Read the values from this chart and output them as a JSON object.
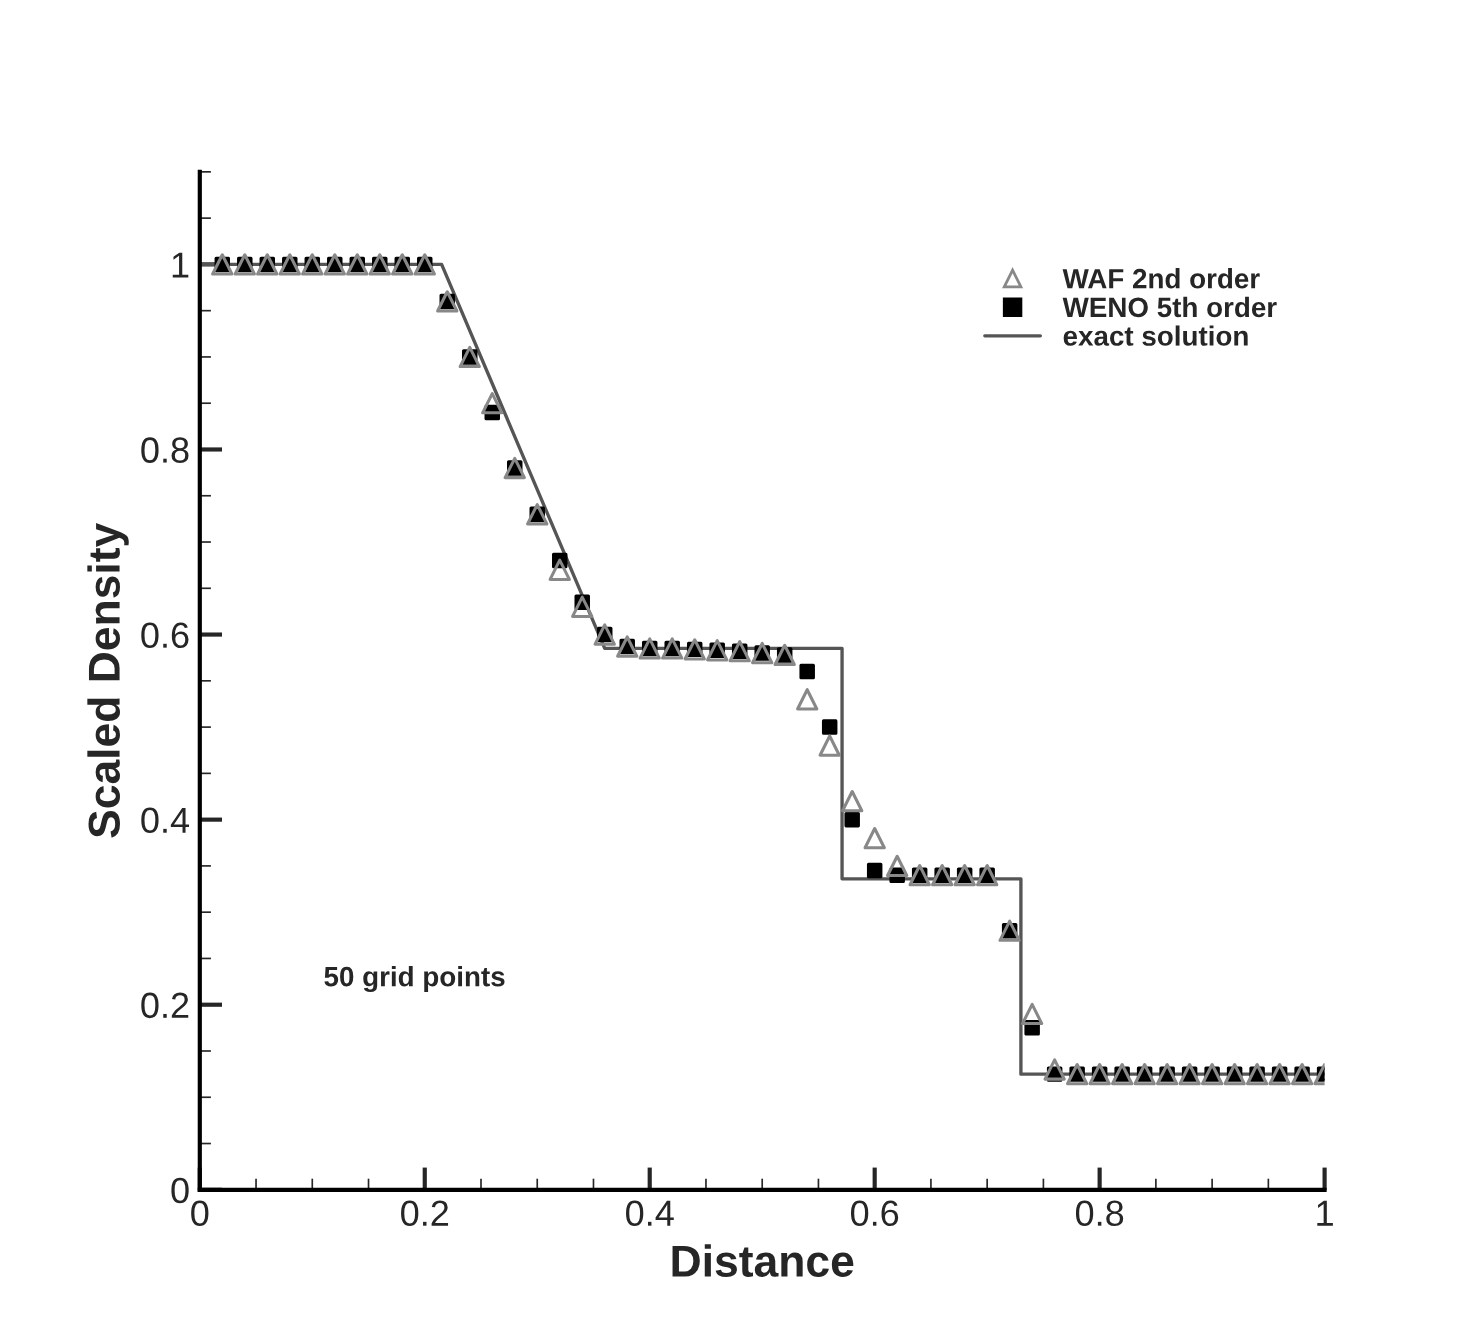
{
  "chart_data": {
    "type": "scatter",
    "xlabel": "Distance",
    "ylabel": "Scaled Density",
    "x": [
      0.02,
      0.04,
      0.06,
      0.08,
      0.1,
      0.12,
      0.14,
      0.16,
      0.18,
      0.2,
      0.22,
      0.24,
      0.26,
      0.28,
      0.3,
      0.32,
      0.34,
      0.36,
      0.38,
      0.4,
      0.42,
      0.44,
      0.46,
      0.48,
      0.5,
      0.52,
      0.54,
      0.56,
      0.58,
      0.6,
      0.62,
      0.64,
      0.66,
      0.68,
      0.7,
      0.72,
      0.74,
      0.76,
      0.78,
      0.8,
      0.82,
      0.84,
      0.86,
      0.88,
      0.9,
      0.92,
      0.94,
      0.96,
      0.98,
      1.0
    ],
    "series": [
      {
        "name": "WAF 2nd order",
        "marker": "triangle",
        "color": "#888888",
        "values": [
          1,
          1,
          1,
          1,
          1,
          1,
          1,
          1,
          1,
          1,
          0.96,
          0.9,
          0.85,
          0.78,
          0.73,
          0.67,
          0.63,
          0.6,
          0.587,
          0.585,
          0.585,
          0.584,
          0.583,
          0.582,
          0.58,
          0.578,
          0.53,
          0.48,
          0.42,
          0.38,
          0.35,
          0.34,
          0.34,
          0.34,
          0.34,
          0.28,
          0.19,
          0.13,
          0.125,
          0.125,
          0.125,
          0.125,
          0.125,
          0.125,
          0.125,
          0.125,
          0.125,
          0.125,
          0.125,
          0.125
        ]
      },
      {
        "name": "WENO 5th order",
        "marker": "square",
        "color": "#000000",
        "values": [
          1,
          1,
          1,
          1,
          1,
          1,
          1,
          1,
          1,
          1,
          0.96,
          0.9,
          0.84,
          0.78,
          0.73,
          0.68,
          0.635,
          0.6,
          0.587,
          0.585,
          0.585,
          0.584,
          0.583,
          0.582,
          0.58,
          0.578,
          0.56,
          0.5,
          0.4,
          0.345,
          0.34,
          0.34,
          0.34,
          0.34,
          0.34,
          0.28,
          0.175,
          0.125,
          0.125,
          0.125,
          0.125,
          0.125,
          0.125,
          0.125,
          0.125,
          0.125,
          0.125,
          0.125,
          0.125,
          0.125
        ]
      },
      {
        "name": "exact solution",
        "type": "line",
        "marker": "none",
        "color": "#555555",
        "x": [
          0,
          0.215,
          0.36,
          0.571,
          0.571,
          0.73,
          0.73,
          1.0
        ],
        "values": [
          1,
          1,
          0.585,
          0.585,
          0.336,
          0.336,
          0.125,
          0.125
        ]
      }
    ],
    "xlim": [
      0,
      1
    ],
    "ylim": [
      0,
      1.1
    ],
    "xticks": [
      0,
      0.2,
      0.4,
      0.6,
      0.8,
      1
    ],
    "yticks": [
      0,
      0.2,
      0.4,
      0.6,
      0.8,
      1
    ],
    "grid": false,
    "legend": "top right",
    "annotations": [
      "50 grid points"
    ]
  }
}
